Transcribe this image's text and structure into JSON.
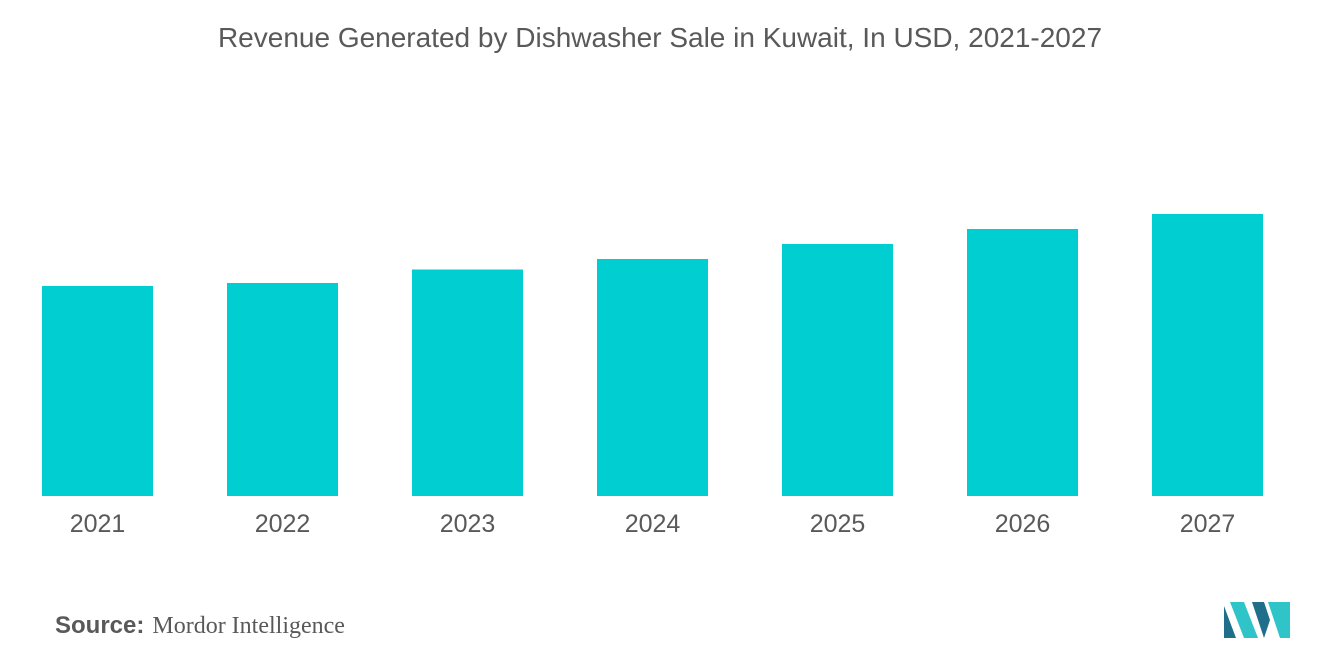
{
  "chart_data": {
    "type": "bar",
    "title": "Revenue Generated by Dishwasher Sale in Kuwait, In USD, 2021-2027",
    "xlabel": "",
    "ylabel": "",
    "categories": [
      "2021",
      "2022",
      "2023",
      "2024",
      "2025",
      "2026",
      "2027"
    ],
    "values": [
      70,
      71,
      75.5,
      79,
      84,
      89,
      94
    ],
    "ylim": [
      0,
      100
    ],
    "grid": false,
    "legend": "none",
    "bar_color": "#00CED1"
  },
  "source": {
    "label": "Source:",
    "text": "Mordor Intelligence"
  },
  "colors": {
    "bar": "#00CED1",
    "text": "#595959",
    "logo_dark": "#1f6f8b",
    "logo_light": "#2fc4c8"
  }
}
